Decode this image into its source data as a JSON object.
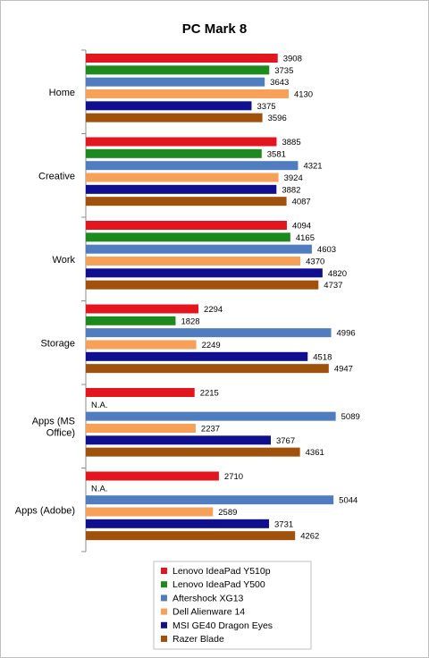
{
  "chart_data": {
    "type": "bar",
    "orientation": "horizontal",
    "title": "PC Mark 8",
    "categories": [
      "Home",
      "Creative",
      "Work",
      "Storage",
      "Apps (MS\nOffice)",
      "Apps (Adobe)"
    ],
    "series": [
      {
        "name": "Lenovo IdeaPad Y510p",
        "color": "#e3161f",
        "values": [
          3908,
          3885,
          4094,
          2294,
          2215,
          2710
        ],
        "labels": [
          "3908",
          "3885",
          "4094",
          "2294",
          "2215",
          "2710"
        ]
      },
      {
        "name": "Lenovo IdeaPad Y500",
        "color": "#1d8a1d",
        "values": [
          3735,
          3581,
          4165,
          1828,
          null,
          null
        ],
        "labels": [
          "3735",
          "3581",
          "4165",
          "1828",
          "N.A.",
          "N.A."
        ]
      },
      {
        "name": "Aftershock XG13",
        "color": "#4f7dbf",
        "values": [
          3643,
          4321,
          4603,
          4996,
          5089,
          5044
        ],
        "labels": [
          "3643",
          "4321",
          "4603",
          "4996",
          "5089",
          "5044"
        ]
      },
      {
        "name": "Dell Alienware 14",
        "color": "#f6a157",
        "values": [
          4130,
          3924,
          4370,
          2249,
          2237,
          2589
        ],
        "labels": [
          "4130",
          "3924",
          "4370",
          "2249",
          "2237",
          "2589"
        ]
      },
      {
        "name": "MSI GE40 Dragon Eyes",
        "color": "#0f0f8f",
        "values": [
          3375,
          3882,
          4820,
          4518,
          3767,
          3731
        ],
        "labels": [
          "3375",
          "3882",
          "4820",
          "4518",
          "3767",
          "3731"
        ]
      },
      {
        "name": "Razer Blade",
        "color": "#a0520d",
        "values": [
          3596,
          4087,
          4737,
          4947,
          4361,
          4262
        ],
        "labels": [
          "3596",
          "4087",
          "4737",
          "4947",
          "4361",
          "4262"
        ]
      }
    ],
    "xlim": [
      0,
      5500
    ],
    "grid": false,
    "legend_position": "bottom"
  }
}
